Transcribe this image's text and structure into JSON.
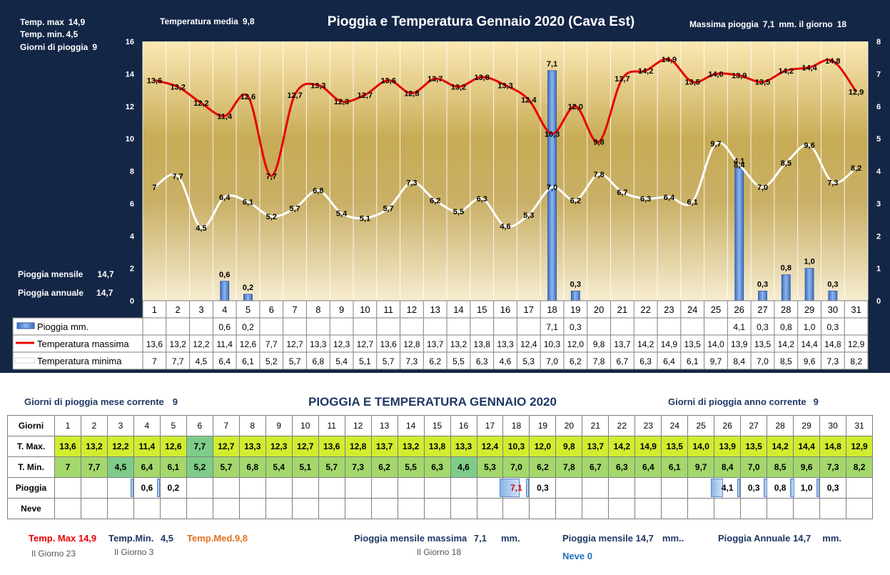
{
  "header": {
    "title": "Pioggia e Temperatura Gennaio 2020 (Cava Est)",
    "temp_max_label": "Temp. max",
    "temp_max_value": "14,9",
    "temp_min_label": "Temp.  min.",
    "temp_min_value": "4,5",
    "rain_days_label": "Giorni  di pioggia",
    "rain_days_value": "9",
    "temp_avg_label": "Temperatura media",
    "temp_avg_value": "9,8",
    "max_rain_label": "Massima pioggia",
    "max_rain_value": "7,1",
    "max_rain_unit": "mm. il giorno",
    "max_rain_day": "18",
    "monthly_rain_label": "Pioggia mensile",
    "monthly_rain_value": "14,7",
    "annual_rain_label": "Pioggia annuale",
    "annual_rain_value": "14,7"
  },
  "chart_data": {
    "type": "bar+line",
    "categories": [
      "1",
      "2",
      "3",
      "4",
      "5",
      "6",
      "7",
      "8",
      "9",
      "10",
      "11",
      "12",
      "13",
      "14",
      "15",
      "16",
      "17",
      "18",
      "19",
      "20",
      "21",
      "22",
      "23",
      "24",
      "25",
      "26",
      "27",
      "28",
      "29",
      "30",
      "31"
    ],
    "series": [
      {
        "name": "Pioggia mm.",
        "type": "bar",
        "axis": "right",
        "color": "#4a7fd0",
        "values": [
          null,
          null,
          null,
          0.6,
          0.2,
          null,
          null,
          null,
          null,
          null,
          null,
          null,
          null,
          null,
          null,
          null,
          null,
          7.1,
          0.3,
          null,
          null,
          null,
          null,
          null,
          null,
          4.1,
          0.3,
          0.8,
          1.0,
          0.3,
          null
        ],
        "labels": [
          "",
          "",
          "",
          "0,6",
          "0,2",
          "",
          "",
          "",
          "",
          "",
          "",
          "",
          "",
          "",
          "",
          "",
          "",
          "7,1",
          "0,3",
          "",
          "",
          "",
          "",
          "",
          "",
          "4,1",
          "0,3",
          "0,8",
          "1,0",
          "0,3",
          ""
        ]
      },
      {
        "name": "Temperatura massima",
        "type": "line",
        "axis": "left",
        "color": "#e60000",
        "values": [
          13.6,
          13.2,
          12.2,
          11.4,
          12.6,
          7.7,
          12.7,
          13.3,
          12.3,
          12.7,
          13.6,
          12.8,
          13.7,
          13.2,
          13.8,
          13.3,
          12.4,
          10.3,
          12.0,
          9.8,
          13.7,
          14.2,
          14.9,
          13.5,
          14.0,
          13.9,
          13.5,
          14.2,
          14.4,
          14.8,
          12.9
        ],
        "labels": [
          "13,6",
          "13,2",
          "12,2",
          "11,4",
          "12,6",
          "7,7",
          "12,7",
          "13,3",
          "12,3",
          "12,7",
          "13,6",
          "12,8",
          "13,7",
          "13,2",
          "13,8",
          "13,3",
          "12,4",
          "10,3",
          "12,0",
          "9,8",
          "13,7",
          "14,2",
          "14,9",
          "13,5",
          "14,0",
          "13,9",
          "13,5",
          "14,2",
          "14,4",
          "14,8",
          "12,9"
        ]
      },
      {
        "name": "Temperatura minima",
        "type": "line",
        "axis": "left",
        "color": "#ffffff",
        "values": [
          7,
          7.7,
          4.5,
          6.4,
          6.1,
          5.2,
          5.7,
          6.8,
          5.4,
          5.1,
          5.7,
          7.3,
          6.2,
          5.5,
          6.3,
          4.6,
          5.3,
          7.0,
          6.2,
          7.8,
          6.7,
          6.3,
          6.4,
          6.1,
          9.7,
          8.4,
          7.0,
          8.5,
          9.6,
          7.3,
          8.2
        ],
        "labels": [
          "7",
          "7,7",
          "4,5",
          "6,4",
          "6,1",
          "5,2",
          "5,7",
          "6,8",
          "5,4",
          "5,1",
          "5,7",
          "7,3",
          "6,2",
          "5,5",
          "6,3",
          "4,6",
          "5,3",
          "7,0",
          "6,2",
          "7,8",
          "6,7",
          "6,3",
          "6,4",
          "6,1",
          "9,7",
          "8,4",
          "7,0",
          "8,5",
          "9,6",
          "7,3",
          "8,2"
        ]
      }
    ],
    "ylim": [
      0,
      16
    ],
    "y_ticks": [
      "0",
      "2",
      "4",
      "6",
      "8",
      "10",
      "12",
      "14",
      "16"
    ],
    "y2lim": [
      0,
      8
    ],
    "y2_ticks": [
      "0",
      "1",
      "2",
      "3",
      "4",
      "5",
      "6",
      "7",
      "8"
    ],
    "grid": true,
    "legend": "data-table-bottom"
  },
  "table": {
    "title": "PIOGGIA E TEMPERATURA GENNAIO 2020",
    "rain_days_month_label": "Giorni di pioggia mese corrente",
    "rain_days_month_value": "9",
    "rain_days_year_label": "Giorni di pioggia anno corrente",
    "rain_days_year_value": "9",
    "row_labels": {
      "days": "Giorni",
      "tmax": "T. Max.",
      "tmin": "T. Min.",
      "rain": "Pioggia",
      "snow": "Neve"
    },
    "tmin_colors": [
      "#a4d86c",
      "#a4d86c",
      "#7fcc8a",
      "#a4d86c",
      "#a4d86c",
      "#7fcc8a",
      "#a4d86c",
      "#a4d86c",
      "#a4d86c",
      "#a4d86c",
      "#a4d86c",
      "#a4d86c",
      "#a4d86c",
      "#a4d86c",
      "#a4d86c",
      "#7fcc8a",
      "#a4d86c",
      "#a4d86c",
      "#a4d86c",
      "#a4d86c",
      "#a4d86c",
      "#a4d86c",
      "#a4d86c",
      "#a4d86c",
      "#a4d86c",
      "#a4d86c",
      "#a4d86c",
      "#a4d86c",
      "#a4d86c",
      "#a4d86c",
      "#a4d86c"
    ],
    "tmax_colors": {
      "default": "#d2ec2f",
      "day6": "#7fcc8a"
    },
    "rain_bar_fraction": [
      0,
      0,
      0,
      0.08,
      0.03,
      0,
      0,
      0,
      0,
      0,
      0,
      0,
      0,
      0,
      0,
      0,
      0,
      1,
      0.04,
      0,
      0,
      0,
      0,
      0,
      0,
      0.58,
      0.04,
      0.11,
      0.14,
      0.04,
      0
    ],
    "rain_highlight_color": "#e60000"
  },
  "footer": {
    "tmax_label": "Temp. Max",
    "tmax_value": "14,9",
    "tmax_day": "Il Giorno  23",
    "tmin_label": "Temp.Min.",
    "tmin_value": "4,5",
    "tmin_day": "Il Giorno  3",
    "tmed_label": "Temp.Med.",
    "tmed_value": "9,8",
    "max_rain_label": "Pioggia mensile massima",
    "max_rain_value": "7,1",
    "max_rain_unit": "mm.",
    "max_rain_day": "Il Giorno 18",
    "monthly_rain_label": "Pioggia mensile",
    "monthly_rain_value": "14,7",
    "monthly_rain_unit": "mm..",
    "annual_rain_label": "Pioggia Annuale",
    "annual_rain_value": "14,7",
    "annual_rain_unit": "mm.",
    "snow_label": "Neve",
    "snow_value": "0",
    "colors": {
      "tmax": "#e60000",
      "tmin": "#1f3864",
      "tmed": "#e07020",
      "blue": "#1f3864",
      "snow": "#2070c0"
    }
  }
}
